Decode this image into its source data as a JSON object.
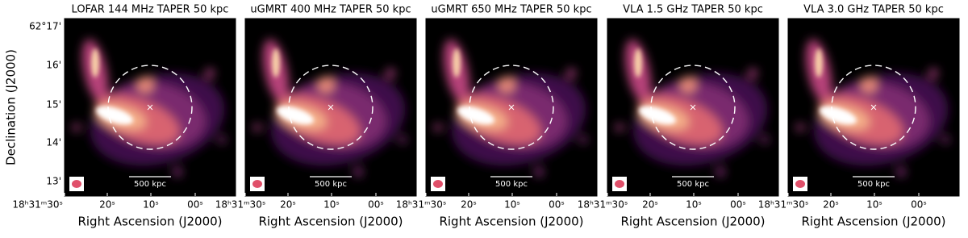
{
  "y_axis": {
    "label": "Declination (J2000)",
    "ticks": [
      "62°17'",
      "16'",
      "15'",
      "14'",
      "13'"
    ]
  },
  "panels": [
    {
      "title": "LOFAR 144 MHz TAPER 50 kpc",
      "x_axis": {
        "label": "Right Ascension (J2000)",
        "ticks": [
          "18ʰ31ᵐ30ˢ",
          "20ˢ",
          "10ˢ",
          "00ˢ"
        ]
      },
      "scale_bar": "500 kpc"
    },
    {
      "title": "uGMRT 400 MHz TAPER 50 kpc",
      "x_axis": {
        "label": "Right Ascension (J2000)",
        "ticks": [
          "18ʰ31ᵐ30ˢ",
          "20ˢ",
          "10ˢ",
          "00ˢ"
        ]
      },
      "scale_bar": "500 kpc"
    },
    {
      "title": "uGMRT 650 MHz TAPER 50 kpc",
      "x_axis": {
        "label": "Right Ascension (J2000)",
        "ticks": [
          "18ʰ31ᵐ30ˢ",
          "20ˢ",
          "10ˢ",
          "00ˢ"
        ]
      },
      "scale_bar": "500 kpc"
    },
    {
      "title": "VLA 1.5 GHz TAPER 50 kpc",
      "x_axis": {
        "label": "Right Ascension (J2000)",
        "ticks": [
          "18ʰ31ᵐ30ˢ",
          "20ˢ",
          "10ˢ",
          "00ˢ"
        ]
      },
      "scale_bar": "500 kpc"
    },
    {
      "title": "VLA 3.0 GHz TAPER 50 kpc",
      "x_axis": {
        "label": "Right Ascension (J2000)",
        "ticks": [
          "18ʰ31ᵐ30ˢ",
          "20ˢ",
          "10ˢ",
          "00ˢ"
        ]
      },
      "scale_bar": "500 kpc"
    }
  ]
}
